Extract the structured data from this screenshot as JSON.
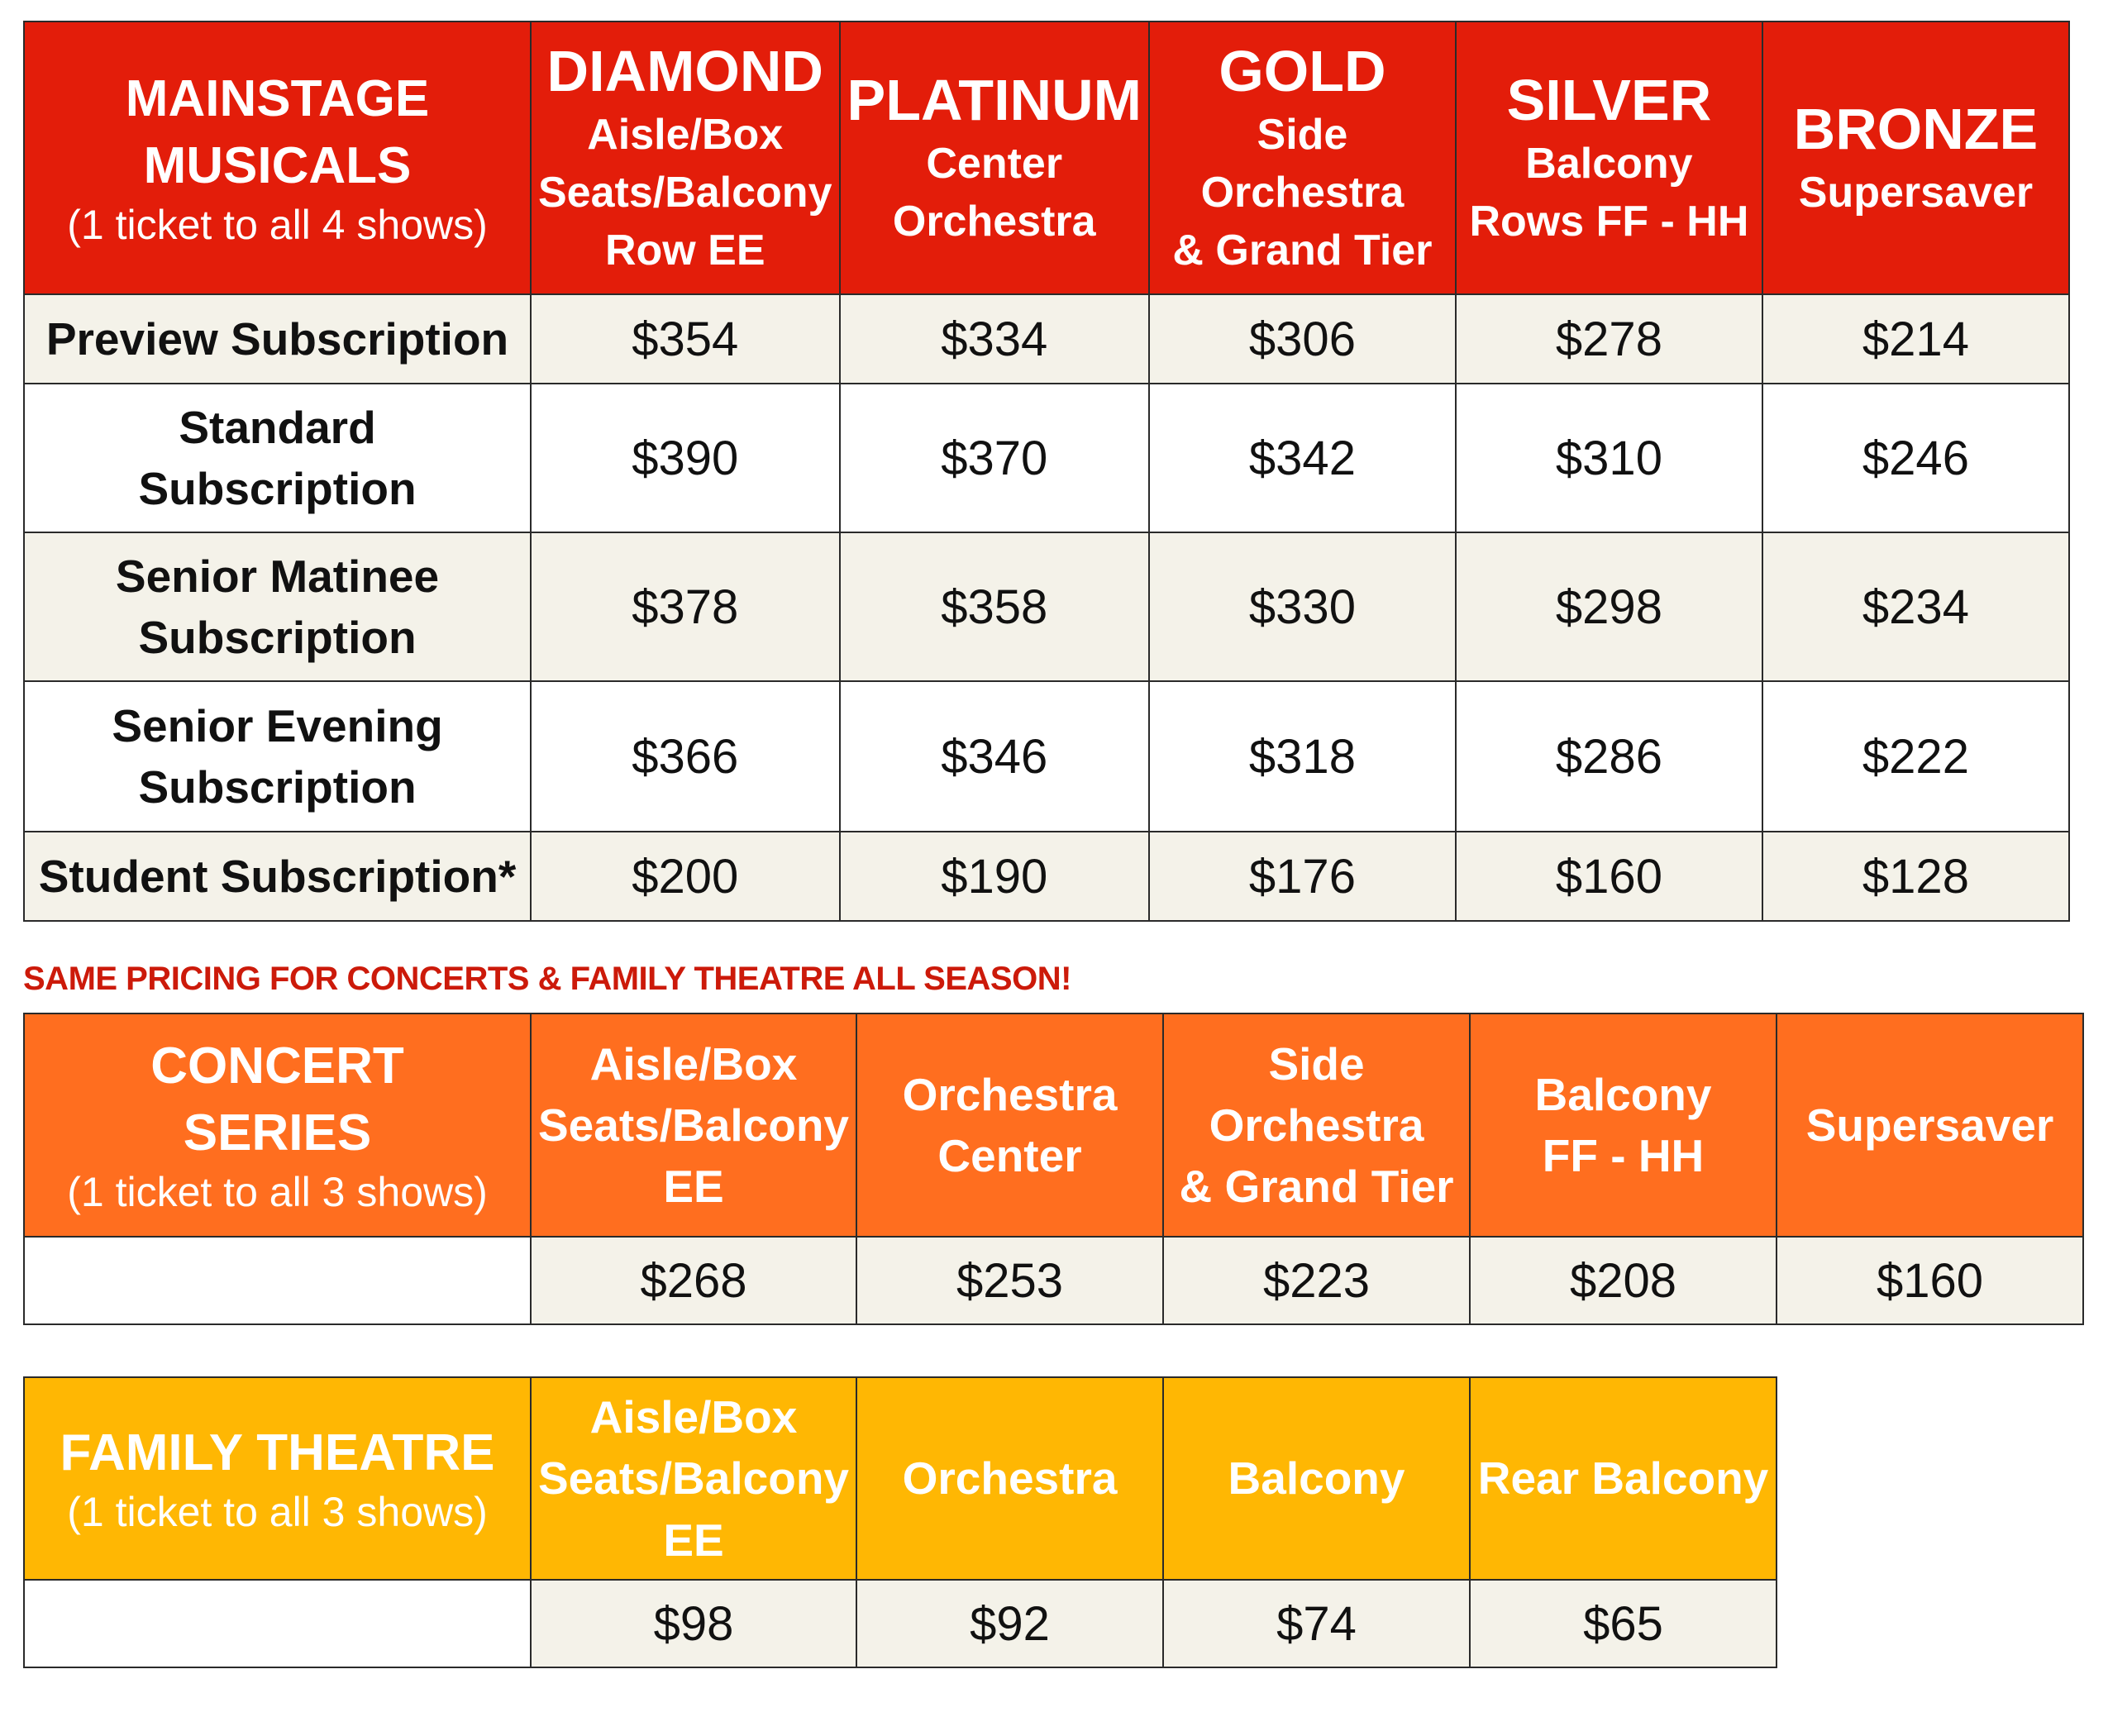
{
  "mainstage": {
    "header": {
      "title_line1": "MAINSTAGE",
      "title_line2": "MUSICALS",
      "subtitle": "(1 ticket to all 4 shows)",
      "tiers": [
        {
          "name": "DIAMOND",
          "desc": [
            "Aisle/Box",
            "Seats/Balcony",
            "Row EE"
          ]
        },
        {
          "name": "PLATINUM",
          "desc": [
            "Center",
            "Orchestra"
          ]
        },
        {
          "name": "GOLD",
          "desc": [
            "Side Orchestra",
            "& Grand Tier"
          ]
        },
        {
          "name": "SILVER",
          "desc": [
            "Balcony",
            "Rows FF - HH"
          ]
        },
        {
          "name": "BRONZE",
          "desc": [
            "Supersaver"
          ]
        }
      ]
    },
    "rows": [
      {
        "label": [
          "Preview Subscription"
        ],
        "prices": [
          "$354",
          "$334",
          "$306",
          "$278",
          "$214"
        ]
      },
      {
        "label": [
          "Standard",
          "Subscription"
        ],
        "prices": [
          "$390",
          "$370",
          "$342",
          "$310",
          "$246"
        ]
      },
      {
        "label": [
          "Senior Matinee",
          "Subscription"
        ],
        "prices": [
          "$378",
          "$358",
          "$330",
          "$298",
          "$234"
        ]
      },
      {
        "label": [
          "Senior Evening",
          "Subscription"
        ],
        "prices": [
          "$366",
          "$346",
          "$318",
          "$286",
          "$222"
        ]
      },
      {
        "label": [
          "Student Subscription*"
        ],
        "prices": [
          "$200",
          "$190",
          "$176",
          "$160",
          "$128"
        ]
      }
    ]
  },
  "note": "SAME PRICING FOR CONCERTS & FAMILY THEATRE ALL SEASON!",
  "concert": {
    "header": {
      "title_line1": "CONCERT",
      "title_line2": "SERIES",
      "subtitle": "(1 ticket to all 3 shows)",
      "columns": [
        [
          "Aisle/Box",
          "Seats/Balcony",
          "EE"
        ],
        [
          "Orchestra",
          "Center"
        ],
        [
          "Side Orchestra",
          "& Grand Tier"
        ],
        [
          "Balcony",
          "FF - HH"
        ],
        [
          "Supersaver"
        ]
      ]
    },
    "prices": [
      "$268",
      "$253",
      "$223",
      "$208",
      "$160"
    ]
  },
  "family": {
    "header": {
      "title": "FAMILY THEATRE",
      "subtitle": "(1 ticket to all 3 shows)",
      "columns": [
        [
          "Aisle/Box",
          "Seats/Balcony",
          "EE"
        ],
        [
          "Orchestra"
        ],
        [
          "Balcony"
        ],
        [
          "Rear Balcony"
        ]
      ]
    },
    "prices": [
      "$98",
      "$92",
      "$74",
      "$65"
    ]
  },
  "colors": {
    "mainstage_header": "#e31d0a",
    "concert_header": "#ff6e1f",
    "family_header": "#ffb703",
    "alt_row": "#f4f2e9",
    "note_text": "#cc1a0a"
  }
}
